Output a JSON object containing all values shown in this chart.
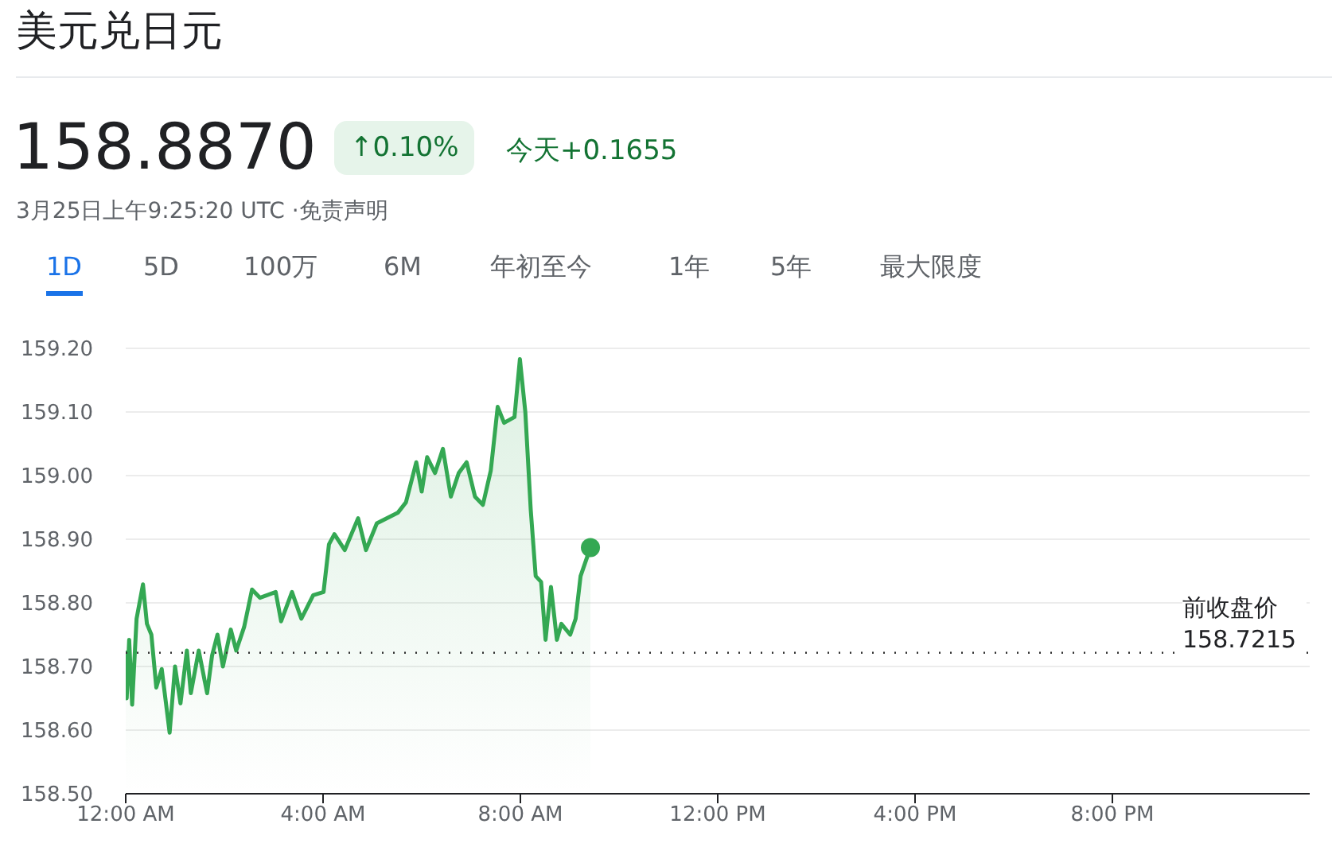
{
  "chart_data": {
    "type": "area",
    "title": "美元兑日元",
    "subtitle": "3月25日上午9:25:20 UTC ·免责声明",
    "annotations": [
      "158.8870",
      "↑0.10%",
      "今天+0.1655",
      "1D",
      "5D",
      "100万",
      "6M",
      "年初至今",
      "1年",
      "5年",
      "最大限度"
    ],
    "x": [
      0,
      0.02,
      0.07,
      0.13,
      0.22,
      0.35,
      0.43,
      0.52,
      0.62,
      0.73,
      0.89,
      1.0,
      1.11,
      1.24,
      1.32,
      1.48,
      1.65,
      1.75,
      1.86,
      1.97,
      2.13,
      2.24,
      2.4,
      2.56,
      2.72,
      3.04,
      3.15,
      3.37,
      3.56,
      3.8,
      4.01,
      4.12,
      4.23,
      4.44,
      4.71,
      4.87,
      5.09,
      5.52,
      5.68,
      5.89,
      6.0,
      6.11,
      6.27,
      6.43,
      6.59,
      6.75,
      6.91,
      7.08,
      7.24,
      7.4,
      7.54,
      7.67,
      7.88,
      7.99,
      8.1,
      8.21,
      8.31,
      8.42,
      8.51,
      8.62,
      8.74,
      8.83,
      9.01,
      9.12,
      9.22,
      9.42
    ],
    "series": [
      {
        "color": "#34a853",
        "values": [
          158.725,
          158.65,
          158.742,
          158.64,
          158.775,
          158.829,
          158.767,
          158.75,
          158.667,
          158.696,
          158.596,
          158.7,
          158.642,
          158.725,
          158.658,
          158.725,
          158.658,
          158.717,
          158.75,
          158.7,
          158.758,
          158.725,
          158.762,
          158.821,
          158.808,
          158.817,
          158.771,
          158.817,
          158.775,
          158.812,
          158.817,
          158.892,
          158.908,
          158.883,
          158.933,
          158.883,
          158.925,
          158.942,
          158.958,
          159.021,
          158.975,
          159.029,
          159.004,
          159.042,
          158.967,
          159.004,
          159.021,
          158.967,
          158.954,
          159.008,
          159.108,
          159.083,
          159.092,
          159.183,
          159.1,
          158.946,
          158.842,
          158.833,
          158.742,
          158.825,
          158.742,
          158.767,
          158.75,
          158.775,
          158.842,
          158.887
        ]
      }
    ],
    "xlim": [
      0,
      24
    ],
    "xticks": [
      {
        "value": 0,
        "label": "12:00 AM"
      },
      {
        "value": 4,
        "label": "4:00 AM"
      },
      {
        "value": 8,
        "label": "8:00 AM"
      },
      {
        "value": 12,
        "label": "12:00 PM"
      },
      {
        "value": 16,
        "label": "4:00 PM"
      },
      {
        "value": 20,
        "label": "8:00 PM"
      }
    ],
    "ylim": [
      158.5,
      159.2
    ],
    "yticks": [
      {
        "value": 158.5,
        "label": "158.50"
      },
      {
        "value": 158.6,
        "label": "158.60"
      },
      {
        "value": 158.7,
        "label": "158.70"
      },
      {
        "value": 158.8,
        "label": "158.80"
      },
      {
        "value": 158.9,
        "label": "158.90"
      },
      {
        "value": 159.0,
        "label": "159.00"
      },
      {
        "value": 159.1,
        "label": "159.10"
      },
      {
        "value": 159.2,
        "label": "159.20"
      }
    ],
    "ref_lines": [
      {
        "axis": "y",
        "value": 158.7215,
        "label": "前收盘价158.7215",
        "line_style": "dotted",
        "color": "#333333"
      }
    ],
    "grid": "y",
    "legend": false
  }
}
